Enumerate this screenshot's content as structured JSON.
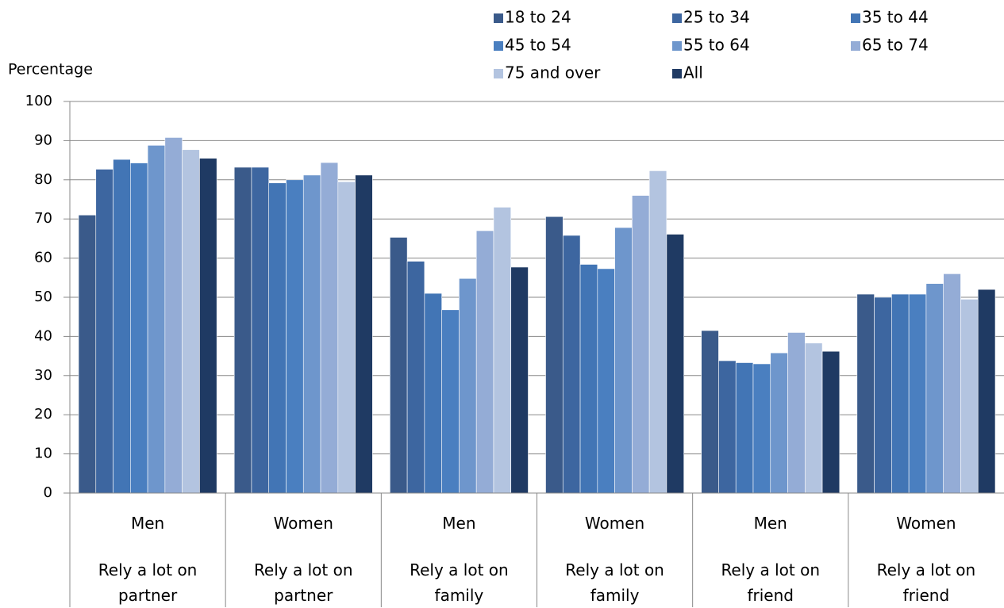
{
  "chart_data": {
    "type": "bar",
    "y_label": "Percentage",
    "categories": [
      "Men",
      "Women",
      "Men",
      "Women",
      "Men",
      "Women"
    ],
    "groups": [
      "Rely a lot on partner",
      "Rely a lot on partner",
      "Rely a lot on family",
      "Rely a lot on family",
      "Rely a lot on friend",
      "Rely a lot on friend"
    ],
    "series": [
      {
        "name": "18 to 24",
        "color": "#3a5a8a",
        "values": [
          71,
          83.2,
          65.3,
          70.6,
          41.5,
          50.8
        ]
      },
      {
        "name": "25 to 34",
        "color": "#3d66a0",
        "values": [
          82.7,
          83.2,
          59.2,
          65.8,
          33.8,
          50
        ]
      },
      {
        "name": "35 to 44",
        "color": "#4275b5",
        "values": [
          85.2,
          79.2,
          51,
          58.4,
          33.3,
          50.8
        ]
      },
      {
        "name": "45 to 54",
        "color": "#4a7fc0",
        "values": [
          84.3,
          80,
          46.8,
          57.3,
          33,
          50.8
        ]
      },
      {
        "name": "55 to 64",
        "color": "#6e96cc",
        "values": [
          88.8,
          81.2,
          54.8,
          67.8,
          35.8,
          53.5
        ]
      },
      {
        "name": "65 to 74",
        "color": "#94acd6",
        "values": [
          90.8,
          84.4,
          67,
          76,
          41,
          56
        ]
      },
      {
        "name": "75 and over",
        "color": "#b3c4e0",
        "values": [
          87.7,
          79.5,
          73,
          82.3,
          38.3,
          49.5
        ]
      },
      {
        "name": "All",
        "color": "#1f3a63",
        "values": [
          85.5,
          81.2,
          57.7,
          66.1,
          36.2,
          52
        ]
      }
    ],
    "ylim": [
      0,
      100
    ],
    "yticks": [
      0,
      10,
      20,
      30,
      40,
      50,
      60,
      70,
      80,
      90,
      100
    ],
    "grid": true
  }
}
